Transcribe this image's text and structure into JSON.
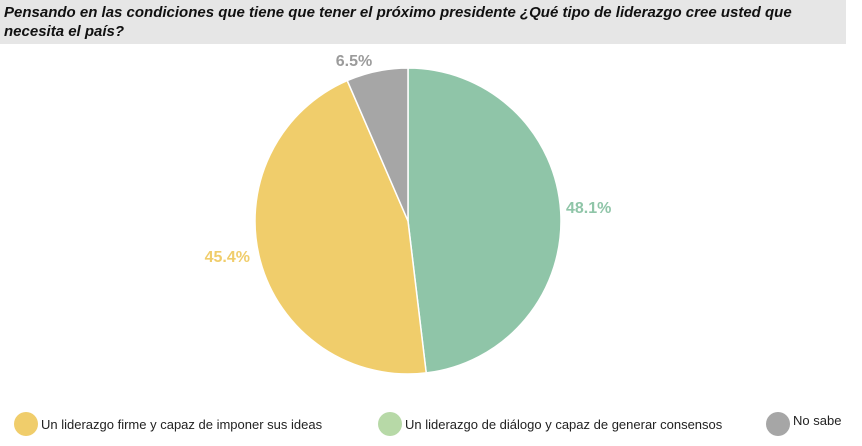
{
  "header": {
    "title": "Pensando en las condiciones que tiene que tener el próximo presidente ¿Qué tipo de liderazgo cree usted que necesita el país?"
  },
  "chart_data": {
    "type": "pie",
    "title": "Pensando en las condiciones que tiene que tener el próximo presidente ¿Qué tipo de liderazgo cree usted que necesita el país?",
    "slices": [
      {
        "label": "Un liderazgo de diálogo y capaz de generar consensos",
        "value": 48.1,
        "display": "48.1%",
        "color": "#8fc5a8",
        "label_color": "#8fc5a8"
      },
      {
        "label": "Un liderazgo firme y capaz de imponer sus ideas",
        "value": 45.4,
        "display": "45.4%",
        "color": "#f0cd6b",
        "label_color": "#f0cd6b"
      },
      {
        "label": "No sabe",
        "value": 6.5,
        "display": "6.5%",
        "color": "#a6a6a6",
        "label_color": "#9b9b9b"
      }
    ],
    "start_angle_deg": 0,
    "direction": "clockwise",
    "legend": {
      "position": "bottom",
      "items": [
        {
          "label": "Un liderazgo firme y capaz de imponer sus ideas",
          "color": "#f0cd6b"
        },
        {
          "label": "Un liderazgo de diálogo y capaz de generar consensos",
          "color": "#b7d9a7"
        },
        {
          "label": "No sabe",
          "color": "#a6a6a6"
        }
      ]
    }
  }
}
